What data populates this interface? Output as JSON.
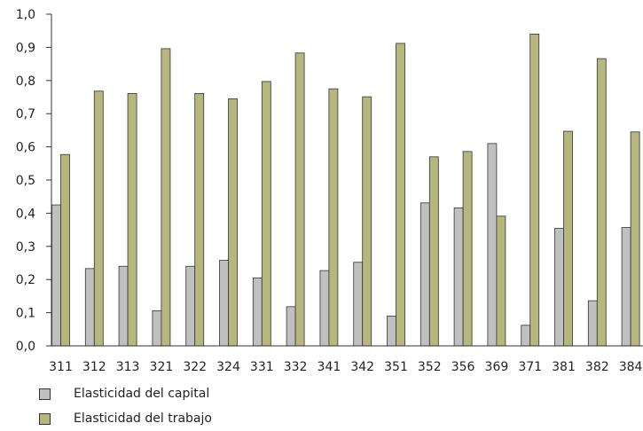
{
  "chart_data": {
    "type": "bar",
    "categories": [
      "311",
      "312",
      "313",
      "321",
      "322",
      "324",
      "331",
      "332",
      "341",
      "342",
      "351",
      "352",
      "356",
      "369",
      "371",
      "381",
      "382",
      "384"
    ],
    "series": [
      {
        "name": "Elasticidad del capital",
        "color": "#c0c0c0",
        "values": [
          0.425,
          0.233,
          0.24,
          0.106,
          0.24,
          0.258,
          0.205,
          0.118,
          0.227,
          0.252,
          0.09,
          0.431,
          0.416,
          0.61,
          0.062,
          0.354,
          0.136,
          0.357
        ]
      },
      {
        "name": "Elasticidad del trabajo",
        "color": "#b5b77c",
        "values": [
          0.577,
          0.768,
          0.761,
          0.896,
          0.761,
          0.745,
          0.797,
          0.883,
          0.775,
          0.751,
          0.912,
          0.57,
          0.586,
          0.391,
          0.94,
          0.647,
          0.866,
          0.645
        ]
      }
    ],
    "ylim": [
      0,
      1.0
    ],
    "yticks": [
      "0,0",
      "0,1",
      "0,2",
      "0,3",
      "0,4",
      "0,5",
      "0,6",
      "0,7",
      "0,8",
      "0,9",
      "1,0"
    ],
    "xlabel": "",
    "ylabel": "",
    "title": "",
    "grid": false,
    "legend_position": "bottom-left"
  }
}
